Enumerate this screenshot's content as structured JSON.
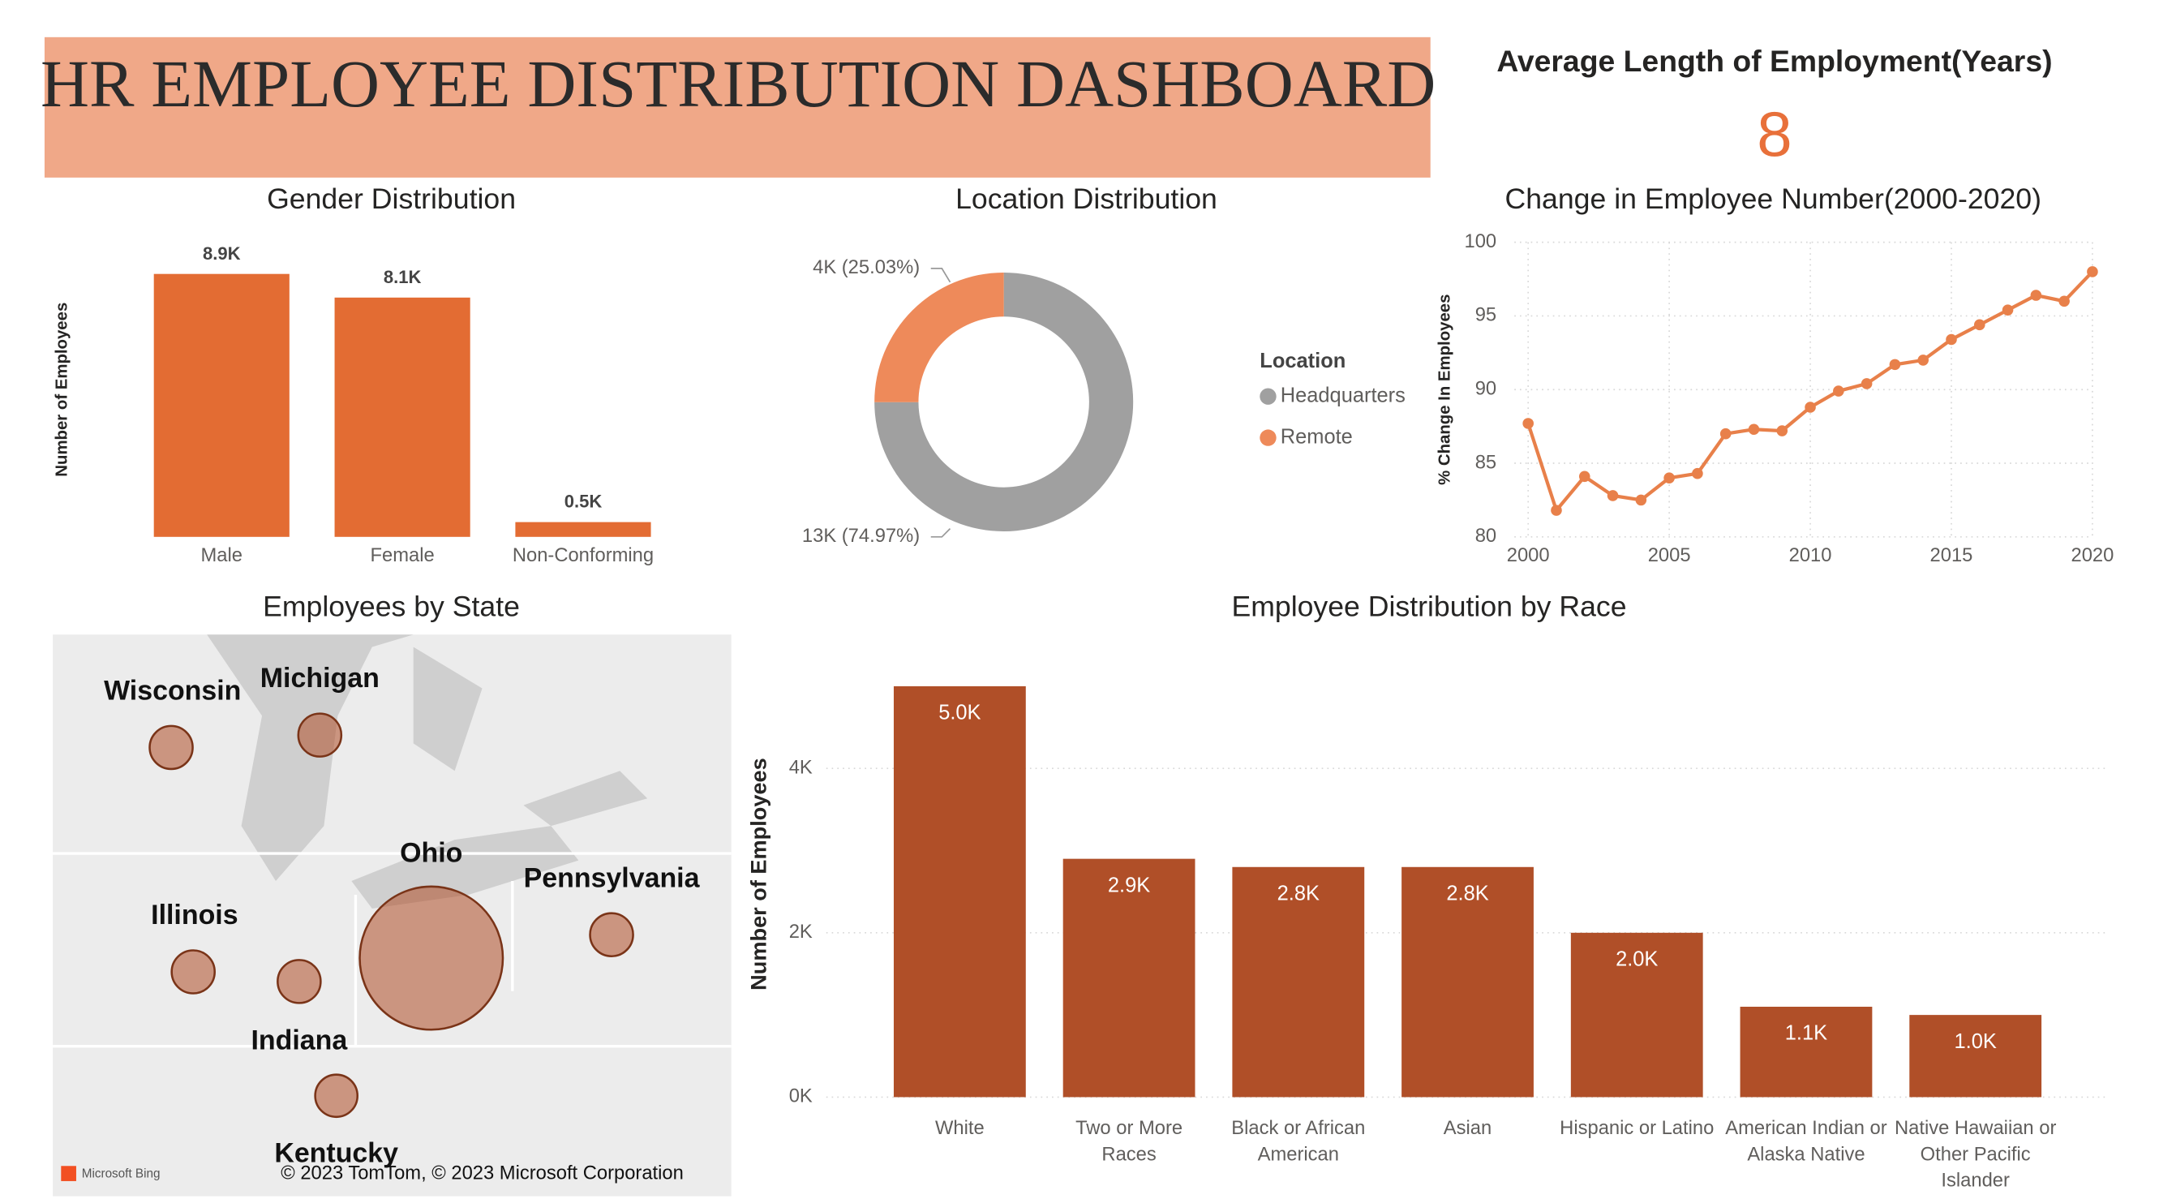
{
  "title": "HR EMPLOYEE DISTRIBUTION DASHBOARD",
  "kpi": {
    "label": "Average Length of Employment(Years)",
    "value": 8
  },
  "chart_data": [
    {
      "type": "bar",
      "title": "Gender Distribution",
      "y_label": "Number of Employees",
      "categories": [
        "Male",
        "Female",
        "Non-Conforming"
      ],
      "values": [
        8900,
        8100,
        500
      ],
      "value_labels": [
        "8.9K",
        "8.1K",
        "0.5K"
      ],
      "color": "#e36c33"
    },
    {
      "type": "donut",
      "title": "Location Distribution",
      "legend_title": "Location",
      "categories": [
        "Headquarters",
        "Remote"
      ],
      "values": [
        74.97,
        25.03
      ],
      "value_labels": [
        "13K (74.97%)",
        "4K (25.03%)"
      ],
      "colors": [
        "#a0a0a0",
        "#ee8a5a"
      ]
    },
    {
      "type": "line",
      "title": "Change in Employee Number(2000-2020)",
      "y_label": "% Change In Employees",
      "x": [
        2000,
        2001,
        2002,
        2003,
        2004,
        2005,
        2006,
        2007,
        2008,
        2009,
        2010,
        2011,
        2012,
        2013,
        2014,
        2015,
        2016,
        2017,
        2018,
        2019,
        2020
      ],
      "values": [
        87.7,
        81.8,
        84.1,
        82.8,
        82.5,
        84.0,
        84.3,
        87.0,
        87.3,
        87.2,
        88.8,
        89.9,
        90.4,
        91.7,
        92.0,
        93.4,
        94.4,
        95.4,
        96.4,
        96.0,
        98.0
      ],
      "xlim": [
        2000,
        2020
      ],
      "ylim": [
        80,
        100
      ],
      "xticks": [
        2000,
        2005,
        2010,
        2015,
        2020
      ],
      "yticks": [
        80,
        85,
        90,
        95,
        100
      ],
      "color": "#e8804a",
      "grid": true
    },
    {
      "type": "bubble_map",
      "title": "Employees by State",
      "categories": [
        "Wisconsin",
        "Michigan",
        "Ohio",
        "Illinois",
        "Pennsylvania",
        "Indiana",
        "Kentucky"
      ],
      "values": [
        600,
        600,
        14000,
        600,
        600,
        600,
        500
      ],
      "color": "#b04f28",
      "provider": "Microsoft Bing",
      "attribution": "© 2023 TomTom, © 2023 Microsoft Corporation"
    },
    {
      "type": "bar",
      "title": "Employee Distribution by Race",
      "y_label": "Number of Employees",
      "categories": [
        "White",
        "Two or More Races",
        "Black or African American",
        "Asian",
        "Hispanic or Latino",
        "American Indian or Alaska Native",
        "Native Hawaiian or Other Pacific Islander"
      ],
      "values": [
        5000,
        2900,
        2800,
        2800,
        2000,
        1100,
        1000
      ],
      "value_labels": [
        "5.0K",
        "2.9K",
        "2.8K",
        "2.8K",
        "2.0K",
        "1.1K",
        "1.0K"
      ],
      "ylim": [
        0,
        5300
      ],
      "yticks": [
        {
          "value": 0,
          "label": "0K"
        },
        {
          "value": 2000,
          "label": "2K"
        },
        {
          "value": 4000,
          "label": "4K"
        }
      ],
      "color": "#b04f28",
      "grid": true
    }
  ]
}
